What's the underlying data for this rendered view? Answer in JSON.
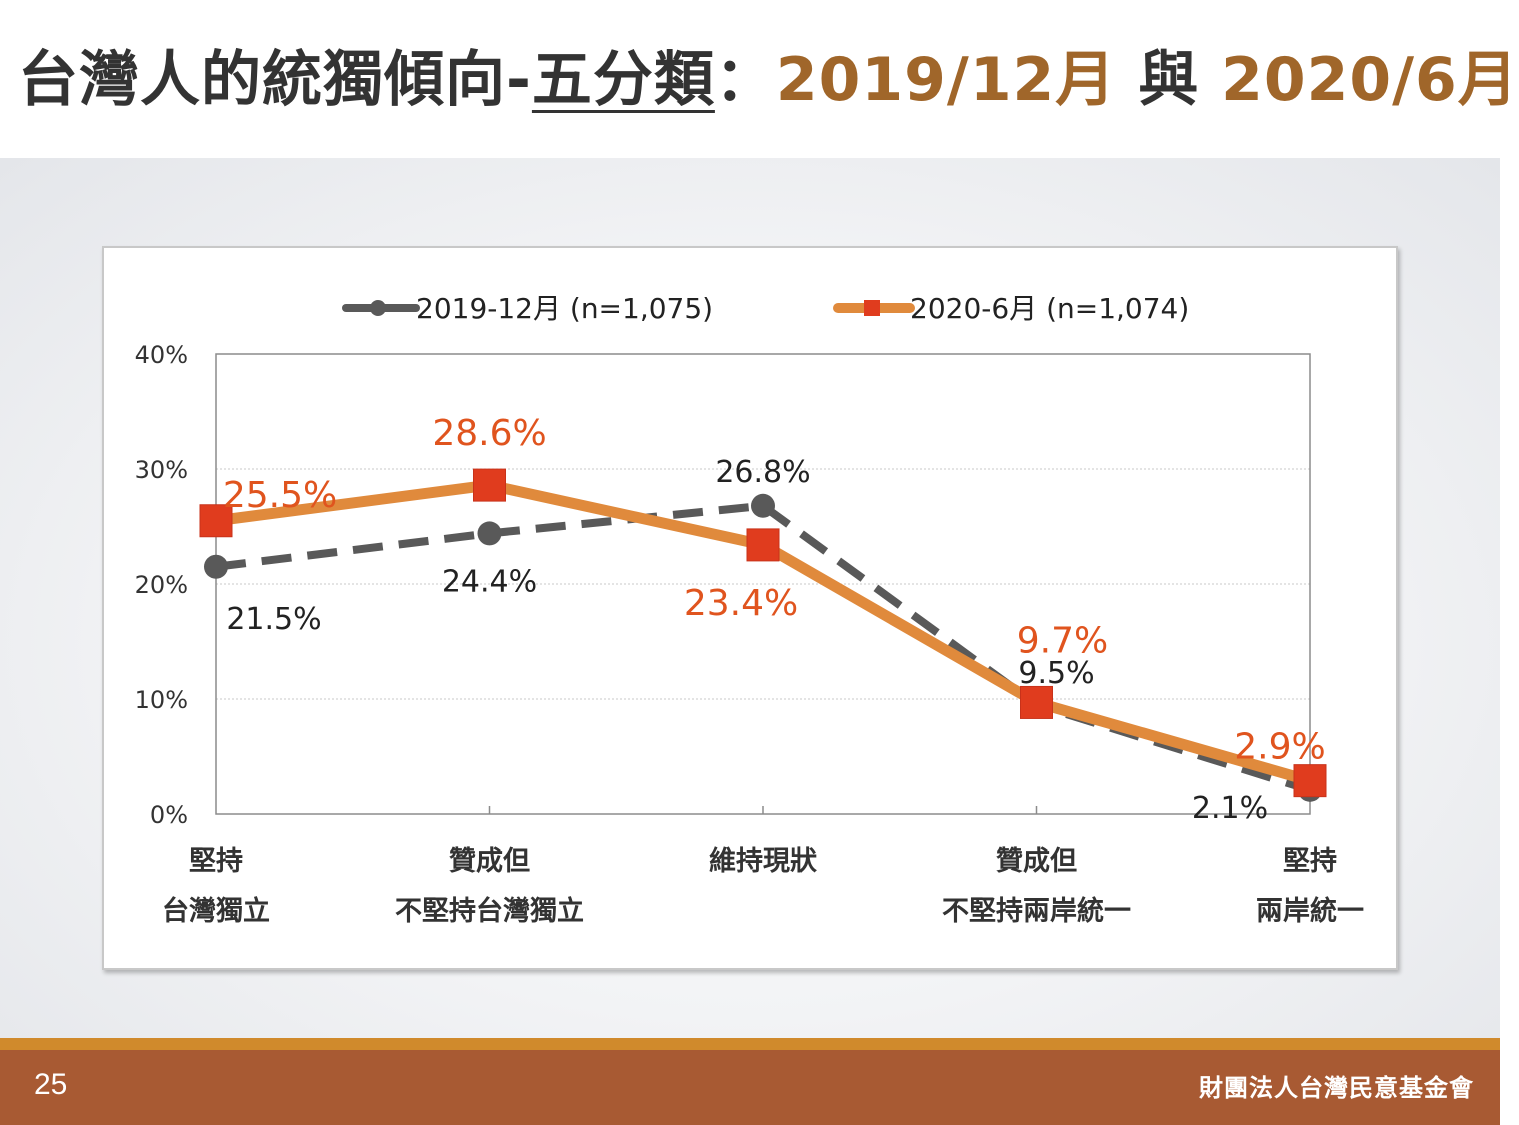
{
  "slide": {
    "title_part1": "台灣人的統獨傾向-",
    "title_underlined": "五分類",
    "title_sep": "：",
    "title_date1": "2019/12月",
    "title_join": " 與 ",
    "title_date2": "2020/6月",
    "page_number": "25",
    "organization": "財團法人台灣民意基金會"
  },
  "colors": {
    "series_2019": "#595959",
    "series_2020_line": "#e08a3c",
    "series_2020_marker": "#e03c1e",
    "label_2020": "#e0541e",
    "title_brown": "#a0662a",
    "footer": "#a85a33"
  },
  "chart_data": {
    "type": "line",
    "categories": [
      [
        "堅持",
        "台灣獨立"
      ],
      [
        "贊成但",
        "不堅持台灣獨立"
      ],
      [
        "維持現狀"
      ],
      [
        "贊成但",
        "不堅持兩岸統一"
      ],
      [
        "堅持",
        "兩岸統一"
      ]
    ],
    "series": [
      {
        "name": "2019-12月 (n=1,075)",
        "values": [
          21.5,
          24.4,
          26.8,
          9.5,
          2.1
        ],
        "labels": [
          "21.5%",
          "24.4%",
          "26.8%",
          "9.5%",
          "2.1%"
        ],
        "style": "dashed",
        "marker": "circle"
      },
      {
        "name": "2020-6月 (n=1,074)",
        "values": [
          25.5,
          28.6,
          23.4,
          9.7,
          2.9
        ],
        "labels": [
          "25.5%",
          "28.6%",
          "23.4%",
          "9.7%",
          "2.9%"
        ],
        "style": "solid",
        "marker": "square"
      }
    ],
    "y_ticks": [
      "0%",
      "10%",
      "20%",
      "30%",
      "40%"
    ],
    "ylim": [
      0,
      40
    ],
    "grid": true,
    "legend_position": "top"
  }
}
